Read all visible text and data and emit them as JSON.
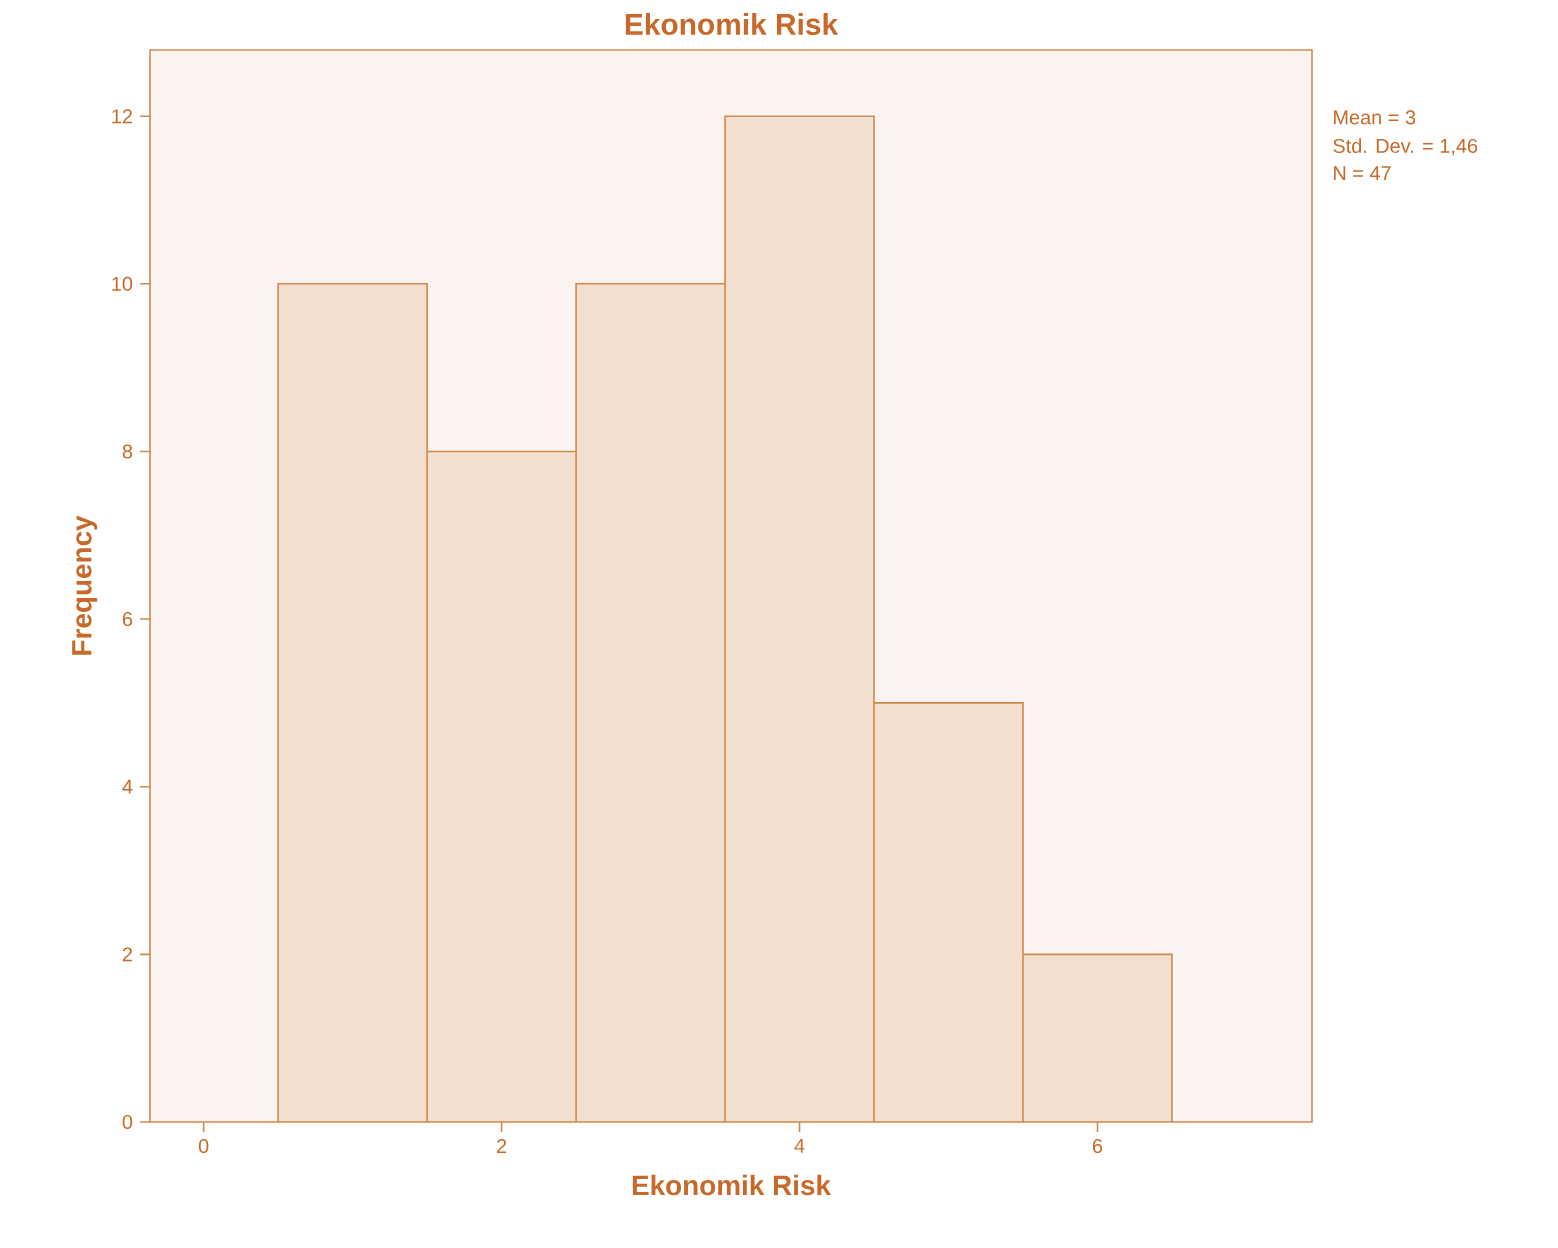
{
  "chart_data": {
    "type": "histogram",
    "title": "Ekonomik Risk",
    "xlabel": "Ekonomik Risk",
    "ylabel": "Frequency",
    "bins": [
      0.5,
      1.5,
      2.5,
      3.5,
      4.5,
      5.5,
      6.5
    ],
    "values": [
      10,
      8,
      10,
      12,
      5,
      2
    ],
    "color": "#f2dfd0",
    "xlim": [
      -0.36,
      7.44
    ],
    "ylim": [
      0,
      12.79
    ],
    "xticks": [
      0,
      2,
      4,
      6
    ],
    "yticks": [
      0,
      2,
      4,
      6,
      8,
      10,
      12
    ],
    "grid": false,
    "annotations": [
      "Mean = 3",
      "Std. Dev. = 1,46",
      "N = 47"
    ]
  }
}
